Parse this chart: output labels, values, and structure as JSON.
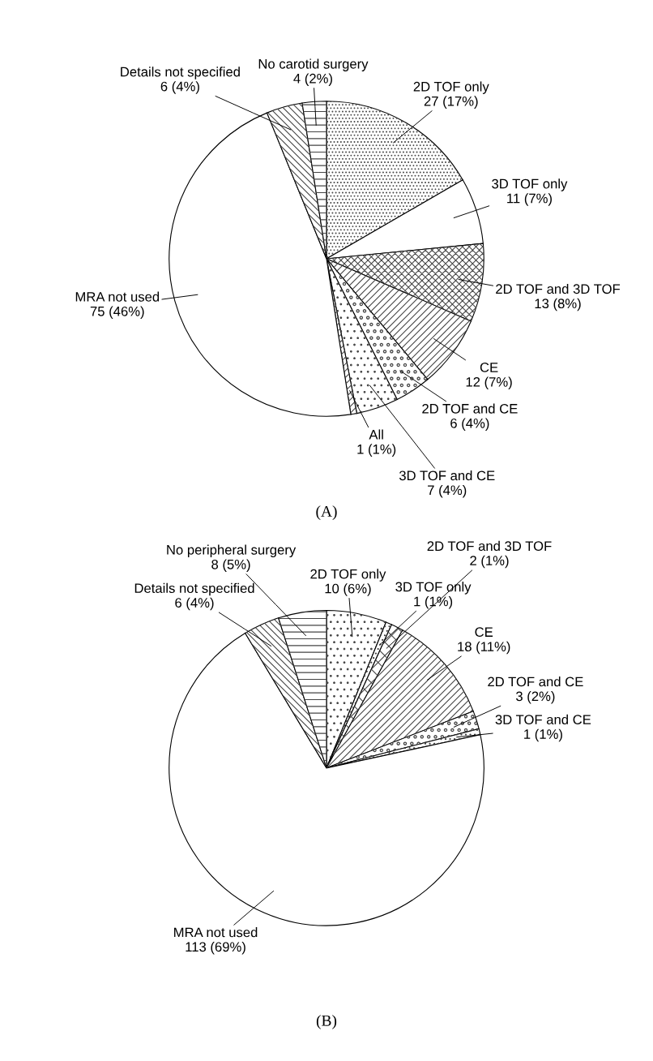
{
  "chart_data": [
    {
      "type": "pie",
      "title": "(A)",
      "categories": [
        "2D TOF only",
        "3D TOF only",
        "2D TOF and 3D TOF",
        "CE",
        "2D TOF and CE",
        "3D TOF and CE",
        "All",
        "MRA not used",
        "Details not specified",
        "No carotid surgery"
      ],
      "values": [
        27,
        11,
        13,
        12,
        6,
        7,
        1,
        75,
        6,
        4
      ],
      "value_labels": [
        "27 (17%)",
        "11 (7%)",
        "13 (8%)",
        "12 (7%)",
        "6 (4%)",
        "7 (4%)",
        "1 (1%)",
        "75 (46%)",
        "6 (4%)",
        "4 (2%)"
      ],
      "colors": [
        "#ffffff",
        "#ffffff",
        "#ffffff",
        "#ffffff",
        "#ffffff",
        "#ffffff",
        "#ffffff",
        "#ffffff",
        "#ffffff",
        "#ffffff"
      ]
    },
    {
      "type": "pie",
      "title": "(B)",
      "categories": [
        "2D TOF only",
        "3D TOF only",
        "2D TOF and 3D TOF",
        "CE",
        "2D TOF and CE",
        "3D TOF and CE",
        "MRA not used",
        "Details not specified",
        "No peripheral surgery"
      ],
      "values": [
        10,
        1,
        2,
        18,
        3,
        1,
        113,
        6,
        8
      ],
      "value_labels": [
        "10 (6%)",
        "1 (1%)",
        "2 (1%)",
        "18 (11%)",
        "3 (2%)",
        "1 (1%)",
        "113 (69%)",
        "6 (4%)",
        "8 (5%)"
      ],
      "colors": [
        "#ffffff",
        "#ffffff",
        "#ffffff",
        "#ffffff",
        "#ffffff",
        "#ffffff",
        "#ffffff",
        "#ffffff",
        "#ffffff"
      ]
    }
  ]
}
